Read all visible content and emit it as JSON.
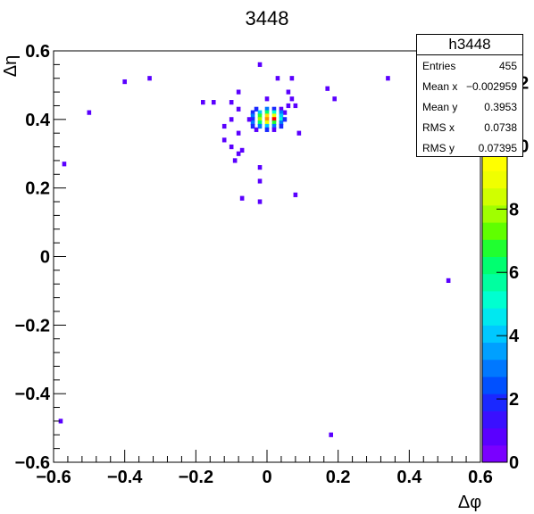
{
  "chart_data": {
    "type": "heatmap",
    "title": "3448",
    "xlabel": "Δφ",
    "ylabel": "Δη",
    "xlim": [
      -0.6,
      0.6
    ],
    "ylim": [
      -0.6,
      0.6
    ],
    "zlim": [
      0,
      13
    ],
    "x_ticks": [
      "−0.6",
      "−0.4",
      "−0.2",
      "0",
      "0.2",
      "0.4",
      "0.6"
    ],
    "y_ticks": [
      "−0.6",
      "−0.4",
      "−0.2",
      "0",
      "0.2",
      "0.4",
      "0.6"
    ],
    "z_ticks": [
      "0",
      "2",
      "4",
      "6",
      "8",
      "10",
      "12"
    ],
    "palette": [
      "#7a00ff",
      "#5a00ff",
      "#3a10ff",
      "#1a28ff",
      "#0050ff",
      "#0078ff",
      "#00a0ff",
      "#00c8ff",
      "#00e8f0",
      "#00ffd0",
      "#00ffa0",
      "#00ff70",
      "#20ff30",
      "#60ff00",
      "#a0ff00",
      "#d0ff00",
      "#f0ff00",
      "#ffff00",
      "#ffe000",
      "#ffc000",
      "#ff9000",
      "#ff6000",
      "#ff2a00",
      "#ff0000"
    ],
    "cells": [
      [
        -0.02,
        0.56,
        1
      ],
      [
        0.03,
        0.52,
        1
      ],
      [
        0.07,
        0.52,
        1
      ],
      [
        -0.33,
        0.52,
        1
      ],
      [
        -0.4,
        0.51,
        1
      ],
      [
        0.34,
        0.52,
        1
      ],
      [
        0.17,
        0.49,
        1
      ],
      [
        -0.08,
        0.48,
        1
      ],
      [
        0.06,
        0.48,
        1
      ],
      [
        0.0,
        0.46,
        1
      ],
      [
        0.07,
        0.46,
        1
      ],
      [
        0.19,
        0.46,
        1
      ],
      [
        -0.18,
        0.45,
        1
      ],
      [
        -0.15,
        0.45,
        1
      ],
      [
        -0.1,
        0.45,
        1
      ],
      [
        0.06,
        0.44,
        1
      ],
      [
        0.08,
        0.44,
        1
      ],
      [
        -0.5,
        0.42,
        1
      ],
      [
        -0.08,
        0.43,
        1
      ],
      [
        0.05,
        0.42,
        1
      ],
      [
        -0.1,
        0.4,
        1
      ],
      [
        -0.12,
        0.38,
        1
      ],
      [
        -0.08,
        0.36,
        1
      ],
      [
        -0.12,
        0.34,
        1
      ],
      [
        -0.1,
        0.32,
        1
      ],
      [
        -0.08,
        0.3,
        1
      ],
      [
        0.09,
        0.36,
        1
      ],
      [
        -0.07,
        0.31,
        1
      ],
      [
        -0.09,
        0.28,
        1
      ],
      [
        -0.02,
        0.26,
        1
      ],
      [
        -0.02,
        0.22,
        1
      ],
      [
        -0.57,
        0.27,
        1
      ],
      [
        0.08,
        0.18,
        1
      ],
      [
        -0.07,
        0.17,
        1
      ],
      [
        -0.02,
        0.16,
        1
      ],
      [
        0.51,
        -0.07,
        1
      ],
      [
        -0.58,
        -0.48,
        1
      ],
      [
        0.18,
        -0.52,
        1
      ],
      [
        -0.03,
        0.43,
        2
      ],
      [
        0.0,
        0.43,
        3
      ],
      [
        0.02,
        0.43,
        2
      ],
      [
        0.04,
        0.43,
        1
      ],
      [
        -0.04,
        0.42,
        2
      ],
      [
        -0.02,
        0.42,
        4
      ],
      [
        0.0,
        0.42,
        6
      ],
      [
        0.02,
        0.42,
        5
      ],
      [
        0.04,
        0.42,
        3
      ],
      [
        -0.04,
        0.41,
        3
      ],
      [
        -0.02,
        0.41,
        7
      ],
      [
        0.0,
        0.41,
        10
      ],
      [
        0.02,
        0.41,
        9
      ],
      [
        0.04,
        0.41,
        4
      ],
      [
        -0.04,
        0.4,
        2
      ],
      [
        -0.02,
        0.4,
        8
      ],
      [
        0.0,
        0.4,
        11
      ],
      [
        0.02,
        0.4,
        13
      ],
      [
        0.04,
        0.4,
        5
      ],
      [
        -0.04,
        0.39,
        3
      ],
      [
        -0.02,
        0.39,
        6
      ],
      [
        0.0,
        0.39,
        9
      ],
      [
        0.02,
        0.39,
        7
      ],
      [
        0.04,
        0.39,
        3
      ],
      [
        -0.04,
        0.38,
        2
      ],
      [
        -0.02,
        0.38,
        3
      ],
      [
        0.0,
        0.38,
        4
      ],
      [
        0.02,
        0.38,
        3
      ],
      [
        0.04,
        0.38,
        2
      ],
      [
        -0.03,
        0.37,
        1
      ],
      [
        0.0,
        0.37,
        2
      ],
      [
        0.02,
        0.37,
        1
      ],
      [
        0.05,
        0.4,
        2
      ],
      [
        -0.05,
        0.4,
        1
      ]
    ]
  },
  "stats": {
    "name": "h3448",
    "rows": [
      {
        "label": "Entries",
        "value": "455"
      },
      {
        "label": "Mean x",
        "value": "−0.002959"
      },
      {
        "label": "Mean y",
        "value": "0.3953"
      },
      {
        "label": "RMS x",
        "value": "0.0738"
      },
      {
        "label": "RMS y",
        "value": "0.07395"
      }
    ]
  }
}
